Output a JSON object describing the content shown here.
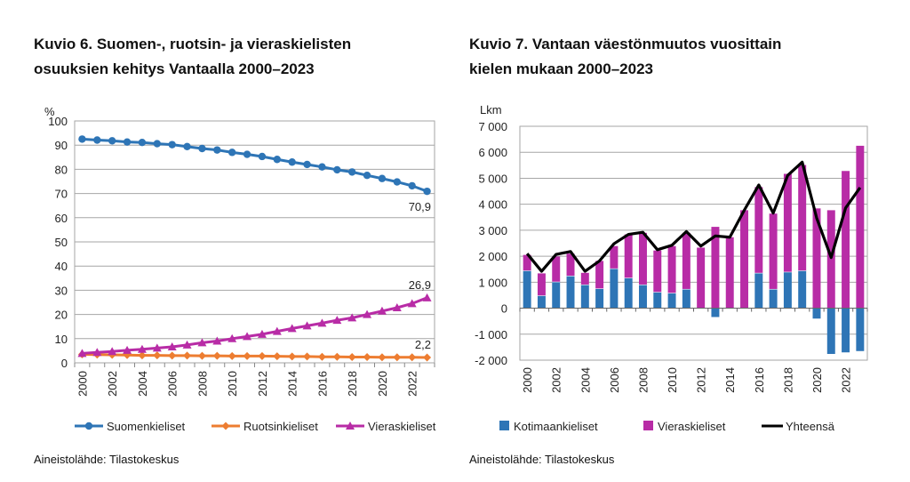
{
  "chart_data": [
    {
      "type": "line",
      "title": "Kuvio 6. Suomen-, ruotsin- ja vieraskielisten osuuksien kehitys Vantaalla 2000–2023",
      "ylabel": "%",
      "ylim": [
        0,
        100
      ],
      "yticks": [
        "0",
        "10",
        "20",
        "30",
        "40",
        "50",
        "60",
        "70",
        "80",
        "90",
        "100"
      ],
      "x": [
        2000,
        2001,
        2002,
        2003,
        2004,
        2005,
        2006,
        2007,
        2008,
        2009,
        2010,
        2011,
        2012,
        2013,
        2014,
        2015,
        2016,
        2017,
        2018,
        2019,
        2020,
        2021,
        2022,
        2023
      ],
      "xtick_labels": [
        "2000",
        "2002",
        "2004",
        "2006",
        "2008",
        "2010",
        "2012",
        "2014",
        "2016",
        "2018",
        "2020",
        "2022"
      ],
      "grid": true,
      "legend": "bottom",
      "series": [
        {
          "name": "Suomenkieliset",
          "color": "#2e75b6",
          "marker": "circle",
          "values": [
            92.5,
            92.1,
            91.8,
            91.3,
            91.1,
            90.6,
            90.2,
            89.4,
            88.6,
            88.0,
            87.0,
            86.2,
            85.3,
            84.1,
            83.0,
            82.0,
            81.0,
            79.8,
            78.9,
            77.5,
            76.2,
            74.8,
            73.2,
            70.9
          ],
          "end_label": "70,9"
        },
        {
          "name": "Ruotsinkieliset",
          "color": "#ed7d31",
          "marker": "diamond",
          "values": [
            3.5,
            3.4,
            3.3,
            3.2,
            3.1,
            3.1,
            3.0,
            3.0,
            2.9,
            2.9,
            2.8,
            2.8,
            2.8,
            2.7,
            2.6,
            2.6,
            2.5,
            2.5,
            2.4,
            2.4,
            2.3,
            2.3,
            2.3,
            2.2
          ],
          "end_label": "2,2"
        },
        {
          "name": "Vieraskieliset",
          "color": "#b82ca6",
          "marker": "triangle",
          "values": [
            3.9,
            4.3,
            4.7,
            5.2,
            5.6,
            6.1,
            6.6,
            7.4,
            8.3,
            9.0,
            10.0,
            10.9,
            11.8,
            13.0,
            14.2,
            15.3,
            16.4,
            17.6,
            18.6,
            20.0,
            21.4,
            22.8,
            24.5,
            26.9
          ],
          "end_label": "26,9"
        }
      ],
      "source": "Aineistolähde: Tilastokeskus"
    },
    {
      "type": "bar",
      "stacked": true,
      "title": "Kuvio 7. Vantaan väestönmuutos vuosittain kielen mukaan 2000–2023",
      "ylabel": "Lkm",
      "ylim": [
        -2000,
        7000
      ],
      "yticks": [
        [
          -2000,
          "-2 000"
        ],
        [
          -1000,
          "-1 000"
        ],
        [
          0,
          "0"
        ],
        [
          1000,
          "1 000"
        ],
        [
          2000,
          "2 000"
        ],
        [
          3000,
          "3 000"
        ],
        [
          4000,
          "4 000"
        ],
        [
          5000,
          "5 000"
        ],
        [
          6000,
          "6 000"
        ],
        [
          7000,
          "7 000"
        ]
      ],
      "x": [
        2000,
        2001,
        2002,
        2003,
        2004,
        2005,
        2006,
        2007,
        2008,
        2009,
        2010,
        2011,
        2012,
        2013,
        2014,
        2015,
        2016,
        2017,
        2018,
        2019,
        2020,
        2021,
        2022,
        2023
      ],
      "xtick_labels": [
        "2000",
        "2002",
        "2004",
        "2006",
        "2008",
        "2010",
        "2012",
        "2014",
        "2016",
        "2018",
        "2020",
        "2022"
      ],
      "grid": true,
      "legend": "bottom",
      "series": [
        {
          "name": "Kotimaankieliset",
          "color": "#2e75b6",
          "kind": "bar",
          "values": [
            1450,
            490,
            1020,
            1250,
            910,
            760,
            1530,
            1170,
            910,
            625,
            590,
            740,
            0,
            -340,
            0,
            0,
            1360,
            740,
            1400,
            1450,
            -400,
            -1760,
            -1700,
            -1650
          ]
        },
        {
          "name": "Vieraskieliset",
          "color": "#b82ca6",
          "kind": "bar",
          "values": [
            600,
            850,
            970,
            850,
            450,
            1060,
            860,
            1670,
            1990,
            1595,
            1800,
            2160,
            2330,
            3130,
            2730,
            3770,
            3300,
            2900,
            3770,
            4060,
            3840,
            3770,
            5280,
            6250
          ]
        },
        {
          "name": "Yhteensä",
          "color": "#000000",
          "kind": "line",
          "values": [
            2100,
            1420,
            2070,
            2180,
            1420,
            1820,
            2480,
            2840,
            2920,
            2250,
            2420,
            2950,
            2390,
            2780,
            2730,
            3770,
            4740,
            3660,
            5110,
            5620,
            3470,
            1950,
            3860,
            4640
          ]
        }
      ],
      "source": "Aineistolähde: Tilastokeskus"
    }
  ],
  "titles": {
    "c1_line1": "Kuvio 6. Suomen-, ruotsin- ja vieraskielisten",
    "c1_line2": "osuuksien kehitys Vantaalla 2000–2023",
    "c2_line1": "Kuvio 7. Vantaan väestönmuutos vuosittain",
    "c2_line2": "kielen mukaan 2000–2023"
  }
}
